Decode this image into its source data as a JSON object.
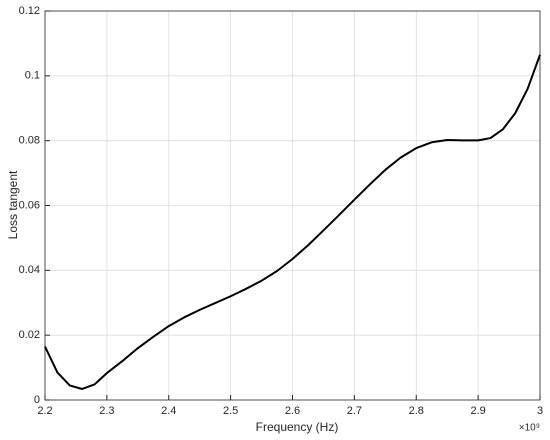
{
  "chart_data": {
    "type": "line",
    "xlabel": "Frequency (Hz)",
    "ylabel": "Loss tangent",
    "x_exponent": "×10⁹",
    "x": [
      2.2,
      2.22,
      2.24,
      2.26,
      2.28,
      2.3,
      2.325,
      2.35,
      2.375,
      2.4,
      2.425,
      2.45,
      2.475,
      2.5,
      2.525,
      2.55,
      2.575,
      2.6,
      2.625,
      2.65,
      2.675,
      2.7,
      2.725,
      2.75,
      2.775,
      2.8,
      2.825,
      2.85,
      2.875,
      2.9,
      2.92,
      2.94,
      2.96,
      2.98,
      3.0
    ],
    "series": [
      {
        "color": "#000000",
        "values": [
          0.0165,
          0.0085,
          0.0045,
          0.0034,
          0.0048,
          0.0083,
          0.012,
          0.016,
          0.0195,
          0.0228,
          0.0255,
          0.0278,
          0.0299,
          0.032,
          0.0343,
          0.0368,
          0.0398,
          0.0435,
          0.0477,
          0.0523,
          0.057,
          0.0618,
          0.0665,
          0.071,
          0.0748,
          0.0777,
          0.0795,
          0.0802,
          0.0801,
          0.0801,
          0.0808,
          0.0835,
          0.0885,
          0.096,
          0.1065
        ]
      }
    ],
    "xlim": [
      2.2,
      3.0
    ],
    "xticks": [
      2.2,
      2.3,
      2.4,
      2.5,
      2.6,
      2.7,
      2.8,
      2.9,
      3
    ],
    "ylim": [
      0,
      0.12
    ],
    "yticks": [
      0,
      0.02,
      0.04,
      0.06,
      0.08,
      0.1,
      0.12
    ],
    "grid": true
  }
}
